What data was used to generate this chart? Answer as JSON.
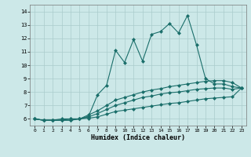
{
  "xlabel": "Humidex (Indice chaleur)",
  "background_color": "#cce8e8",
  "grid_color": "#aacccc",
  "line_color": "#1a6e6a",
  "xlim": [
    -0.5,
    23.5
  ],
  "ylim": [
    5.5,
    14.5
  ],
  "xticks": [
    0,
    1,
    2,
    3,
    4,
    5,
    6,
    7,
    8,
    9,
    10,
    11,
    12,
    13,
    14,
    15,
    16,
    17,
    18,
    19,
    20,
    21,
    22,
    23
  ],
  "yticks": [
    6,
    7,
    8,
    9,
    10,
    11,
    12,
    13,
    14
  ],
  "series": [
    [
      6.0,
      5.9,
      5.9,
      5.9,
      5.9,
      6.0,
      6.2,
      7.8,
      8.5,
      11.1,
      10.2,
      11.9,
      10.3,
      12.3,
      12.5,
      13.1,
      12.4,
      13.7,
      11.5,
      9.0,
      8.6,
      8.6,
      8.4,
      8.3
    ],
    [
      6.0,
      5.9,
      5.9,
      6.0,
      6.0,
      6.0,
      6.3,
      6.6,
      7.0,
      7.4,
      7.6,
      7.8,
      8.0,
      8.15,
      8.25,
      8.4,
      8.5,
      8.6,
      8.7,
      8.8,
      8.85,
      8.85,
      8.7,
      8.3
    ],
    [
      6.0,
      5.9,
      5.9,
      5.9,
      6.0,
      6.0,
      6.15,
      6.4,
      6.7,
      7.0,
      7.2,
      7.4,
      7.6,
      7.7,
      7.85,
      7.95,
      8.0,
      8.1,
      8.2,
      8.25,
      8.3,
      8.3,
      8.2,
      8.3
    ],
    [
      6.0,
      5.9,
      5.9,
      5.9,
      5.9,
      6.0,
      6.05,
      6.15,
      6.35,
      6.55,
      6.65,
      6.75,
      6.85,
      6.95,
      7.05,
      7.15,
      7.2,
      7.3,
      7.4,
      7.5,
      7.55,
      7.6,
      7.65,
      8.3
    ]
  ],
  "marker": "D",
  "markersize": 2.0,
  "linewidth": 0.8
}
